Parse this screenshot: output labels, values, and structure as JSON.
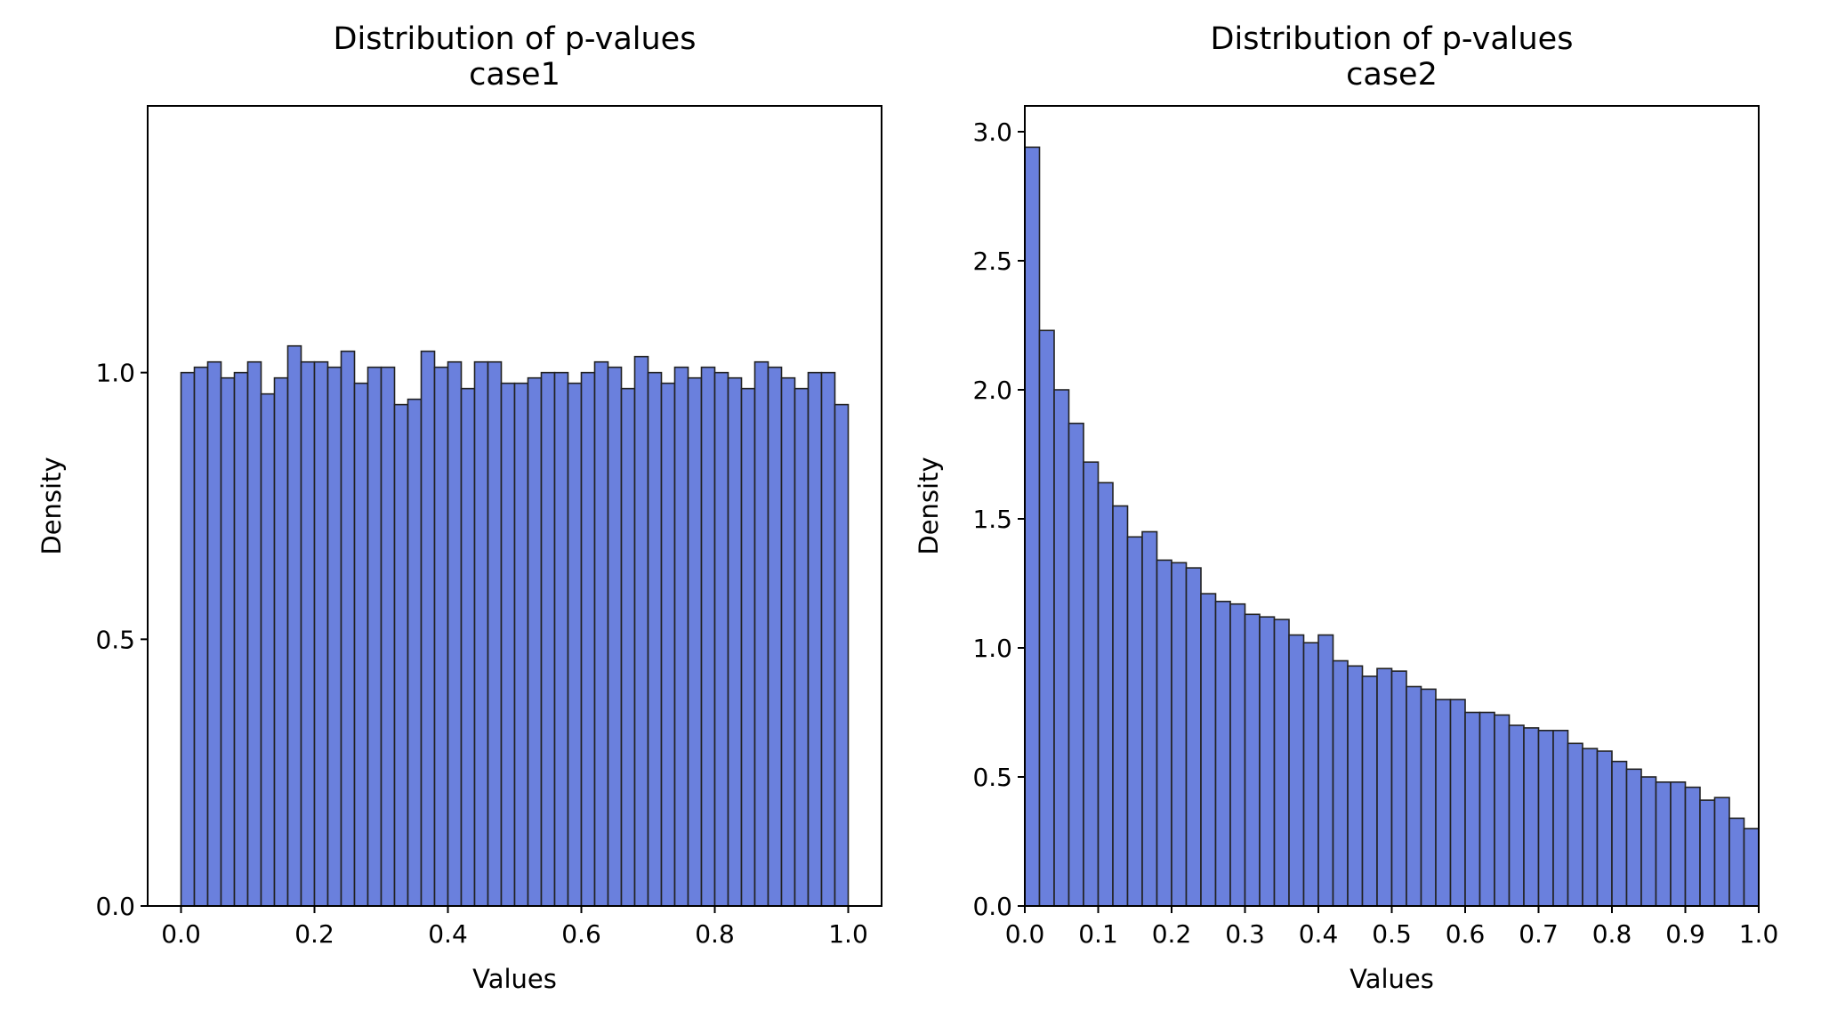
{
  "chart_data": [
    {
      "type": "bar",
      "subtype": "histogram",
      "title": "Distribution of p-values",
      "subtitle": "case1",
      "xlabel": "Values",
      "ylabel": "Density",
      "xlim": [
        -0.05,
        1.05
      ],
      "ylim": [
        0,
        1.5
      ],
      "xticks": [
        "0.0",
        "0.2",
        "0.4",
        "0.6",
        "0.8",
        "1.0"
      ],
      "xtick_values": [
        0.0,
        0.2,
        0.4,
        0.6,
        0.8,
        1.0
      ],
      "yticks": [
        "0.0",
        "0.5",
        "1.0"
      ],
      "ytick_values": [
        0.0,
        0.5,
        1.0
      ],
      "bin_start": 0.0,
      "bin_end": 1.0,
      "bar_color": "#6a80dd",
      "edge_color": "#222222",
      "grid": false,
      "values": [
        1.0,
        1.01,
        1.02,
        0.99,
        1.0,
        1.02,
        0.96,
        0.99,
        1.05,
        1.02,
        1.02,
        1.01,
        1.04,
        0.98,
        1.01,
        1.01,
        0.94,
        0.95,
        1.04,
        1.01,
        1.02,
        0.97,
        1.02,
        1.02,
        0.98,
        0.98,
        0.99,
        1.0,
        1.0,
        0.98,
        1.0,
        1.02,
        1.01,
        0.97,
        1.03,
        1.0,
        0.98,
        1.01,
        0.99,
        1.01,
        1.0,
        0.99,
        0.97,
        1.02,
        1.01,
        0.99,
        0.97,
        1.0,
        1.0,
        0.94
      ]
    },
    {
      "type": "bar",
      "subtype": "histogram",
      "title": "Distribution of p-values",
      "subtitle": "case2",
      "xlabel": "Values",
      "ylabel": "Density",
      "xlim": [
        0.0,
        1.0
      ],
      "ylim": [
        0,
        3.1
      ],
      "xticks": [
        "0.0",
        "0.1",
        "0.2",
        "0.3",
        "0.4",
        "0.5",
        "0.6",
        "0.7",
        "0.8",
        "0.9",
        "1.0"
      ],
      "xtick_values": [
        0.0,
        0.1,
        0.2,
        0.3,
        0.4,
        0.5,
        0.6,
        0.7,
        0.8,
        0.9,
        1.0
      ],
      "yticks": [
        "0.0",
        "0.5",
        "1.0",
        "1.5",
        "2.0",
        "2.5",
        "3.0"
      ],
      "ytick_values": [
        0.0,
        0.5,
        1.0,
        1.5,
        2.0,
        2.5,
        3.0
      ],
      "bin_start": 0.0,
      "bin_end": 1.0,
      "bar_color": "#6a80dd",
      "edge_color": "#222222",
      "grid": false,
      "values": [
        2.94,
        2.23,
        2.0,
        1.87,
        1.72,
        1.64,
        1.55,
        1.43,
        1.45,
        1.34,
        1.33,
        1.31,
        1.21,
        1.18,
        1.17,
        1.13,
        1.12,
        1.11,
        1.05,
        1.02,
        1.05,
        0.95,
        0.93,
        0.89,
        0.92,
        0.91,
        0.85,
        0.84,
        0.8,
        0.8,
        0.75,
        0.75,
        0.74,
        0.7,
        0.69,
        0.68,
        0.68,
        0.63,
        0.61,
        0.6,
        0.56,
        0.53,
        0.5,
        0.48,
        0.48,
        0.46,
        0.41,
        0.42,
        0.34,
        0.3
      ]
    }
  ]
}
